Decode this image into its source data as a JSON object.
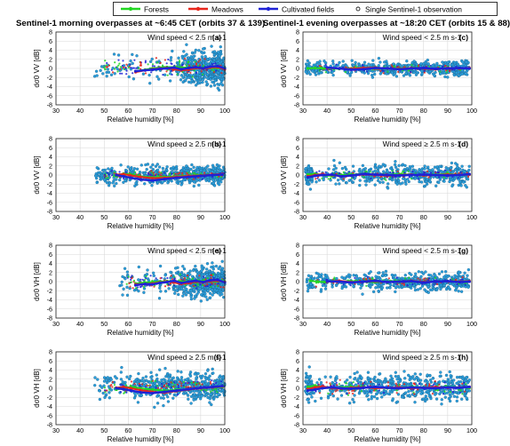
{
  "titles": {
    "left": "Sentinel-1 morning overpasses at ~6:45 CET (orbits 37 & 139)",
    "right": "Sentinel-1 evening overpasses at ~18:20 CET (orbits 15 & 88)"
  },
  "legend": {
    "forests": "Forests",
    "meadows": "Meadows",
    "cultivated": "Cultivated fields",
    "single": "Single Sentinel-1 observation"
  },
  "colors": {
    "forests": "#22d622",
    "meadows": "#e8261c",
    "cultivated": "#1f22d6",
    "single": "#2b9fdc",
    "grid": "#d9d9d9"
  },
  "axes": {
    "xlabel": "Relative humidity [%]",
    "xticks": [
      30,
      40,
      50,
      60,
      70,
      80,
      90,
      100
    ],
    "yticks": [
      -8,
      -6,
      -4,
      -2,
      0,
      2,
      4,
      6,
      8
    ],
    "xlim": [
      30,
      100
    ],
    "ylim": [
      -8,
      8
    ]
  },
  "chart_data": [
    {
      "type": "scatter",
      "panel": "(a)",
      "pol": "VV",
      "annotation": "Wind speed < 2.5 m s-1",
      "xlabel": "Relative humidity [%]",
      "ylabel": "dσ0 VV [dB]",
      "xlim": [
        30,
        100
      ],
      "ylim": [
        -8,
        8
      ],
      "point_cloud": {
        "x_range": [
          46,
          100
        ],
        "y_mean": 0.2,
        "y_spread": 1.8,
        "dense_from": 80
      },
      "series": [
        {
          "name": "Forests",
          "x": [
            63,
            67,
            70,
            73,
            76,
            79,
            82,
            85,
            88,
            91,
            94,
            97,
            100
          ],
          "y": [
            -0.6,
            -0.3,
            0.0,
            0.2,
            0.3,
            0.3,
            0.2,
            0.2,
            0.1,
            0.1,
            0.1,
            0.1,
            0.1
          ]
        },
        {
          "name": "Meadows",
          "x": [
            63,
            67,
            70,
            73,
            76,
            79,
            82,
            85,
            88,
            91,
            94,
            97,
            100
          ],
          "y": [
            -0.8,
            -0.4,
            -0.2,
            0.0,
            0.1,
            -0.2,
            -0.4,
            -0.3,
            0.1,
            -0.1,
            0.2,
            0.3,
            -0.2
          ]
        },
        {
          "name": "Cultivated fields",
          "x": [
            63,
            67,
            70,
            73,
            76,
            79,
            82,
            85,
            88,
            91,
            94,
            97,
            100
          ],
          "y": [
            -0.6,
            -0.4,
            -0.3,
            -0.1,
            0.0,
            0.2,
            -0.2,
            0.1,
            0.3,
            0.0,
            0.4,
            0.5,
            0.0
          ]
        }
      ]
    },
    {
      "type": "scatter",
      "panel": "(c)",
      "pol": "VV",
      "annotation": "Wind speed < 2.5 m s-1",
      "xlabel": "Relative humidity [%]",
      "ylabel": "dσ0 VV [dB]",
      "xlim": [
        30,
        100
      ],
      "ylim": [
        -8,
        8
      ],
      "point_cloud": {
        "x_range": [
          31,
          99
        ],
        "y_mean": 0.0,
        "y_spread": 0.8,
        "dense_from": 40
      },
      "series": [
        {
          "name": "Forests",
          "x": [
            32,
            35,
            38,
            41,
            45,
            50,
            55,
            60,
            65,
            70,
            75,
            80,
            85,
            90,
            95,
            99
          ],
          "y": [
            0.0,
            0.1,
            0.0,
            0.0,
            -0.1,
            0.0,
            0.1,
            0.0,
            -0.1,
            0.0,
            0.1,
            0.0,
            -0.1,
            0.0,
            0.1,
            0.0
          ]
        },
        {
          "name": "Meadows",
          "x": [
            40,
            45,
            50,
            55,
            60,
            65,
            70,
            75,
            80,
            85,
            90,
            95,
            99
          ],
          "y": [
            0.1,
            0.0,
            -0.1,
            0.1,
            0.2,
            0.0,
            -0.1,
            0.1,
            0.0,
            -0.2,
            0.1,
            0.0,
            0.1
          ]
        },
        {
          "name": "Cultivated fields",
          "x": [
            40,
            45,
            50,
            55,
            60,
            65,
            70,
            75,
            80,
            85,
            90,
            95,
            99
          ],
          "y": [
            0.2,
            0.0,
            -0.3,
            -0.2,
            0.1,
            0.0,
            -0.2,
            0.0,
            0.1,
            -0.1,
            0.0,
            0.1,
            0.0
          ]
        }
      ]
    },
    {
      "type": "scatter",
      "panel": "(b)",
      "pol": "VV",
      "annotation": "Wind speed ≥ 2.5 m s-1",
      "xlabel": "Relative humidity [%]",
      "ylabel": "dσ0 VV [dB]",
      "xlim": [
        30,
        100
      ],
      "ylim": [
        -8,
        8
      ],
      "point_cloud": {
        "x_range": [
          46,
          100
        ],
        "y_mean": 0.0,
        "y_spread": 1.0,
        "dense_from": 55
      },
      "series": [
        {
          "name": "Forests",
          "x": [
            55,
            58,
            61,
            65,
            70,
            75,
            80,
            85,
            90,
            95,
            99
          ],
          "y": [
            -0.2,
            0.3,
            0.1,
            -0.3,
            -0.5,
            -0.4,
            -0.3,
            -0.2,
            0.0,
            0.0,
            0.1
          ]
        },
        {
          "name": "Meadows",
          "x": [
            55,
            58,
            61,
            65,
            70,
            75,
            80,
            85,
            90,
            95,
            99
          ],
          "y": [
            0.1,
            0.2,
            -0.1,
            -0.4,
            -0.7,
            -0.6,
            -0.4,
            -0.2,
            -0.1,
            0.1,
            0.2
          ]
        },
        {
          "name": "Cultivated fields",
          "x": [
            55,
            58,
            61,
            65,
            70,
            75,
            80,
            85,
            90,
            95,
            99
          ],
          "y": [
            0.0,
            -0.3,
            -0.6,
            -1.0,
            -1.2,
            -0.9,
            -0.6,
            -0.4,
            -0.2,
            0.0,
            0.1
          ]
        }
      ]
    },
    {
      "type": "scatter",
      "panel": "(d)",
      "pol": "VV",
      "annotation": "Wind speed ≥ 2.5 m s-1",
      "xlabel": "Relative humidity [%]",
      "ylabel": "dσ0 VV [dB]",
      "xlim": [
        30,
        100
      ],
      "ylim": [
        -8,
        8
      ],
      "point_cloud": {
        "x_range": [
          31,
          99
        ],
        "y_mean": 0.0,
        "y_spread": 1.1,
        "dense_from": 34
      },
      "series": [
        {
          "name": "Forests",
          "x": [
            32,
            35,
            38,
            42,
            46,
            50,
            55,
            60,
            65,
            70,
            75,
            80,
            85,
            90,
            95,
            99
          ],
          "y": [
            0.1,
            0.3,
            0.0,
            -0.2,
            0.0,
            0.1,
            0.2,
            0.1,
            0.0,
            0.2,
            0.1,
            0.0,
            0.1,
            0.2,
            0.0,
            0.1
          ]
        },
        {
          "name": "Meadows",
          "x": [
            32,
            35,
            38,
            42,
            46,
            50,
            55,
            60,
            65,
            70,
            75,
            80,
            85,
            90,
            95,
            99
          ],
          "y": [
            -0.3,
            0.0,
            0.2,
            0.0,
            -0.3,
            -0.1,
            0.1,
            0.0,
            -0.2,
            0.0,
            0.1,
            -0.1,
            0.0,
            0.1,
            0.0,
            0.1
          ]
        },
        {
          "name": "Cultivated fields",
          "x": [
            32,
            35,
            38,
            42,
            46,
            50,
            55,
            60,
            65,
            70,
            75,
            80,
            85,
            90,
            95,
            99
          ],
          "y": [
            -0.5,
            -0.2,
            0.0,
            0.1,
            -0.3,
            -0.1,
            0.2,
            0.1,
            0.0,
            -0.1,
            0.0,
            0.1,
            0.0,
            -0.1,
            0.0,
            0.2
          ]
        }
      ]
    },
    {
      "type": "scatter",
      "panel": "(e)",
      "pol": "VH",
      "annotation": "Wind speed < 2.5 m s-1",
      "xlabel": "Relative humidity [%]",
      "ylabel": "dσ0 VH [dB]",
      "xlim": [
        30,
        100
      ],
      "ylim": [
        -8,
        8
      ],
      "point_cloud": {
        "x_range": [
          55,
          100
        ],
        "y_mean": 0.0,
        "y_spread": 1.6,
        "dense_from": 78
      },
      "series": [
        {
          "name": "Forests",
          "x": [
            63,
            67,
            70,
            73,
            76,
            79,
            82,
            85,
            88,
            91,
            94,
            97,
            100
          ],
          "y": [
            -0.4,
            -0.2,
            -0.1,
            0.0,
            0.1,
            0.1,
            0.0,
            0.1,
            0.0,
            0.1,
            0.0,
            0.1,
            0.0
          ]
        },
        {
          "name": "Meadows",
          "x": [
            63,
            67,
            70,
            73,
            76,
            79,
            82,
            85,
            88,
            91,
            94,
            97,
            100
          ],
          "y": [
            -0.6,
            -0.5,
            -0.4,
            -0.2,
            0.0,
            -0.2,
            -0.5,
            -0.3,
            0.0,
            -0.2,
            0.1,
            0.2,
            -0.1
          ]
        },
        {
          "name": "Cultivated fields",
          "x": [
            63,
            67,
            70,
            73,
            76,
            79,
            82,
            85,
            88,
            91,
            94,
            97,
            100
          ],
          "y": [
            -0.8,
            -0.5,
            -0.6,
            -0.3,
            -0.1,
            0.2,
            -0.3,
            0.0,
            0.2,
            -0.1,
            0.3,
            0.4,
            -0.2
          ]
        }
      ]
    },
    {
      "type": "scatter",
      "panel": "(g)",
      "pol": "VH",
      "annotation": "Wind speed < 2.5 m s-1",
      "xlabel": "Relative humidity [%]",
      "ylabel": "dσ0 VH [dB]",
      "xlim": [
        30,
        100
      ],
      "ylim": [
        -8,
        8
      ],
      "point_cloud": {
        "x_range": [
          31,
          99
        ],
        "y_mean": 0.0,
        "y_spread": 1.0,
        "dense_from": 40
      },
      "series": [
        {
          "name": "Forests",
          "x": [
            33,
            36,
            39,
            42,
            46,
            50,
            55,
            60,
            65,
            70,
            75,
            80,
            85,
            90,
            95,
            99
          ],
          "y": [
            0.2,
            0.0,
            -0.1,
            0.1,
            0.0,
            0.1,
            0.0,
            -0.1,
            0.0,
            0.1,
            0.0,
            -0.1,
            0.0,
            0.1,
            0.0,
            0.1
          ]
        },
        {
          "name": "Meadows",
          "x": [
            40,
            45,
            50,
            55,
            60,
            65,
            70,
            75,
            80,
            85,
            90,
            95,
            99
          ],
          "y": [
            0.0,
            0.2,
            -0.1,
            0.0,
            0.1,
            -0.1,
            0.0,
            0.2,
            -0.1,
            0.0,
            0.1,
            0.0,
            0.1
          ]
        },
        {
          "name": "Cultivated fields",
          "x": [
            40,
            45,
            50,
            55,
            60,
            65,
            70,
            75,
            80,
            85,
            90,
            95,
            99
          ],
          "y": [
            0.1,
            0.0,
            -0.2,
            0.0,
            0.2,
            -0.1,
            0.0,
            0.1,
            -0.2,
            0.0,
            0.1,
            -0.1,
            0.0
          ]
        }
      ]
    },
    {
      "type": "scatter",
      "panel": "(f)",
      "pol": "VH",
      "annotation": "Wind speed ≥ 2.5 m s-1",
      "xlabel": "Relative humidity [%]",
      "ylabel": "dσ0 VH [dB]",
      "xlim": [
        30,
        100
      ],
      "ylim": [
        -8,
        8
      ],
      "point_cloud": {
        "x_range": [
          46,
          100
        ],
        "y_mean": 0.3,
        "y_spread": 1.5,
        "dense_from": 60
      },
      "series": [
        {
          "name": "Forests",
          "x": [
            55,
            58,
            61,
            65,
            70,
            75,
            80,
            85,
            90,
            95,
            99
          ],
          "y": [
            -0.3,
            0.0,
            0.3,
            0.0,
            -0.3,
            -0.5,
            -0.4,
            -0.2,
            0.1,
            0.2,
            0.3
          ]
        },
        {
          "name": "Meadows",
          "x": [
            55,
            58,
            61,
            65,
            70,
            75,
            80,
            85,
            90,
            95,
            99
          ],
          "y": [
            0.1,
            0.3,
            0.0,
            -0.4,
            -0.8,
            -1.0,
            -0.6,
            -0.3,
            0.0,
            0.2,
            0.4
          ]
        },
        {
          "name": "Cultivated fields",
          "x": [
            55,
            58,
            61,
            65,
            70,
            75,
            80,
            85,
            90,
            95,
            99
          ],
          "y": [
            0.0,
            -0.2,
            -0.5,
            -0.9,
            -1.1,
            -0.8,
            -0.5,
            -0.2,
            0.1,
            0.3,
            0.5
          ]
        }
      ]
    },
    {
      "type": "scatter",
      "panel": "(h)",
      "pol": "VH",
      "annotation": "Wind speed ≥ 2.5 m s-1",
      "xlabel": "Relative humidity [%]",
      "ylabel": "dσ0 VH [dB]",
      "xlim": [
        30,
        100
      ],
      "ylim": [
        -8,
        8
      ],
      "point_cloud": {
        "x_range": [
          31,
          99
        ],
        "y_mean": 0.2,
        "y_spread": 1.5,
        "dense_from": 34
      },
      "series": [
        {
          "name": "Forests",
          "x": [
            32,
            35,
            38,
            42,
            46,
            50,
            55,
            60,
            65,
            70,
            75,
            80,
            85,
            90,
            95,
            99
          ],
          "y": [
            0.3,
            0.6,
            0.2,
            0.0,
            0.2,
            0.3,
            0.1,
            0.2,
            0.0,
            0.1,
            0.3,
            0.2,
            0.1,
            0.3,
            0.2,
            0.1
          ]
        },
        {
          "name": "Meadows",
          "x": [
            32,
            35,
            38,
            42,
            46,
            50,
            55,
            60,
            65,
            70,
            75,
            80,
            85,
            90,
            95,
            99
          ],
          "y": [
            -0.2,
            0.2,
            0.4,
            0.0,
            -0.1,
            0.1,
            0.2,
            0.0,
            0.1,
            0.2,
            0.0,
            0.1,
            0.3,
            0.1,
            0.2,
            0.3
          ]
        },
        {
          "name": "Cultivated fields",
          "x": [
            32,
            35,
            38,
            42,
            46,
            50,
            55,
            60,
            65,
            70,
            75,
            80,
            85,
            90,
            95,
            99
          ],
          "y": [
            -0.5,
            -0.3,
            0.0,
            0.2,
            0.0,
            -0.1,
            0.1,
            0.3,
            0.1,
            0.0,
            0.2,
            0.1,
            0.0,
            0.2,
            0.1,
            0.3
          ]
        }
      ]
    }
  ]
}
